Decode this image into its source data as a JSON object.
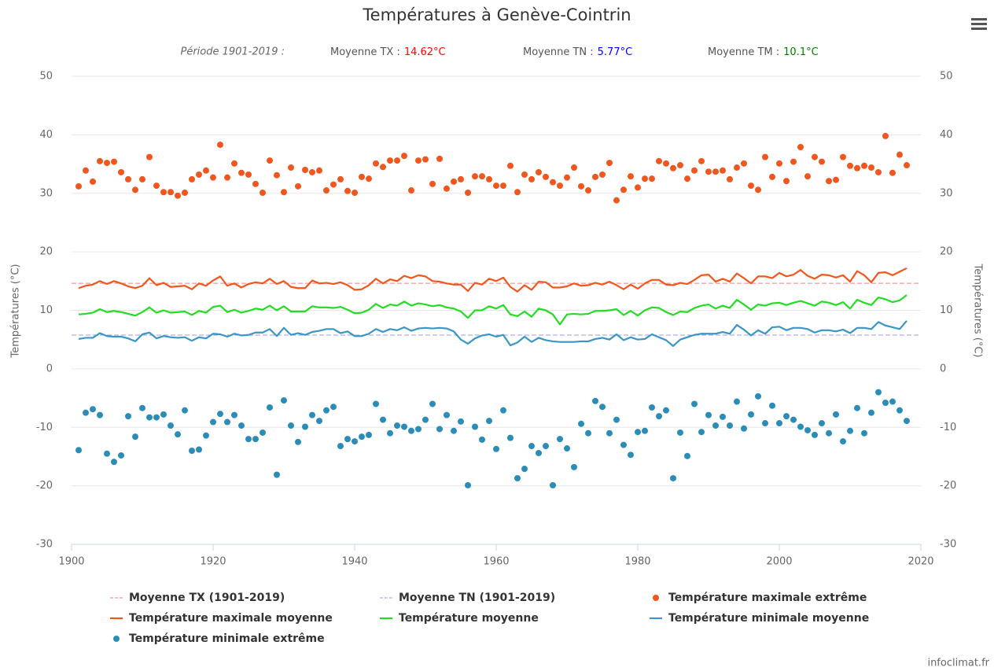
{
  "chart_data": {
    "type": "line",
    "title": "Températures à Genève-Cointrin",
    "subtitle": {
      "period": "Période 1901-2019 :",
      "items": [
        {
          "label": "Moyenne TX :",
          "value": "14.62°C",
          "color": "#ff0000"
        },
        {
          "label": "Moyenne TN :",
          "value": "5.77°C",
          "color": "#0000ff"
        },
        {
          "label": "Moyenne TM :",
          "value": "10.1°C",
          "color": "#008000"
        }
      ]
    },
    "y_label": "Températures (°C)",
    "y2_label": "Températures (°C)",
    "credits": "infoclimat.fr",
    "xlim": [
      1900,
      2020
    ],
    "xticks": [
      1900,
      1920,
      1940,
      1960,
      1980,
      2000,
      2020
    ],
    "ylim": [
      -30,
      50
    ],
    "yticks": [
      -30,
      -20,
      -10,
      0,
      10,
      20,
      30,
      40,
      50
    ],
    "y2lim": [
      -30,
      50
    ],
    "y2ticks": [
      -30,
      -20,
      -10,
      0,
      10,
      20,
      30,
      40,
      50
    ],
    "grid": true,
    "x": [
      1901,
      1902,
      1903,
      1904,
      1905,
      1906,
      1907,
      1908,
      1909,
      1910,
      1911,
      1912,
      1913,
      1914,
      1915,
      1916,
      1917,
      1918,
      1919,
      1920,
      1921,
      1922,
      1923,
      1924,
      1925,
      1926,
      1927,
      1928,
      1929,
      1930,
      1931,
      1932,
      1933,
      1934,
      1935,
      1936,
      1937,
      1938,
      1939,
      1940,
      1941,
      1942,
      1943,
      1944,
      1945,
      1946,
      1947,
      1948,
      1949,
      1950,
      1951,
      1952,
      1953,
      1954,
      1955,
      1956,
      1957,
      1958,
      1959,
      1960,
      1961,
      1962,
      1963,
      1964,
      1965,
      1966,
      1967,
      1968,
      1969,
      1970,
      1971,
      1972,
      1973,
      1974,
      1975,
      1976,
      1977,
      1978,
      1979,
      1980,
      1981,
      1982,
      1983,
      1984,
      1985,
      1986,
      1987,
      1988,
      1989,
      1990,
      1991,
      1992,
      1993,
      1994,
      1995,
      1996,
      1997,
      1998,
      1999,
      2000,
      2001,
      2002,
      2003,
      2004,
      2005,
      2006,
      2007,
      2008,
      2009,
      2010,
      2011,
      2012,
      2013,
      2014,
      2015,
      2016,
      2017,
      2018
    ],
    "series": [
      {
        "name": "Moyenne TX (1901-2019)",
        "kind": "reference",
        "color": "#f08080",
        "value": 14.62
      },
      {
        "name": "Moyenne TN (1901-2019)",
        "kind": "reference",
        "color": "#9999ee",
        "value": 5.77
      },
      {
        "name": "Température maximale extrême",
        "kind": "scatter",
        "color": "#f0561e",
        "values": [
          31.2,
          33.9,
          32.0,
          35.5,
          35.2,
          35.4,
          33.6,
          32.4,
          30.6,
          32.4,
          36.2,
          31.3,
          30.2,
          30.2,
          29.6,
          30.1,
          32.4,
          33.2,
          33.9,
          32.7,
          38.3,
          32.7,
          35.1,
          33.5,
          33.2,
          31.6,
          30.1,
          35.6,
          33.1,
          30.2,
          34.4,
          31.2,
          34.0,
          33.6,
          33.9,
          30.5,
          31.5,
          32.4,
          30.4,
          30.1,
          32.8,
          32.5,
          35.1,
          34.5,
          35.6,
          35.6,
          36.4,
          30.5,
          35.6,
          35.8,
          31.6,
          35.9,
          30.8,
          32.0,
          32.4,
          30.1,
          32.9,
          32.9,
          32.4,
          31.3,
          31.3,
          34.7,
          30.2,
          33.2,
          32.4,
          33.6,
          32.8,
          31.9,
          31.3,
          32.7,
          34.4,
          31.2,
          30.5,
          32.8,
          33.2,
          35.2,
          28.8,
          30.6,
          32.9,
          31.0,
          32.5,
          32.5,
          35.5,
          35.1,
          34.3,
          34.8,
          32.5,
          33.9,
          35.5,
          33.7,
          33.7,
          33.9,
          32.4,
          34.4,
          35.1,
          31.3,
          30.6,
          36.2,
          32.8,
          35.1,
          32.1,
          35.4,
          37.9,
          32.9,
          36.2,
          35.4,
          32.1,
          32.3,
          36.2,
          34.7,
          34.3,
          34.7,
          34.4,
          33.6,
          39.8,
          33.5,
          36.6,
          34.8
        ]
      },
      {
        "name": "Température maximale moyenne",
        "kind": "line",
        "color": "#f0561e",
        "values": [
          13.8,
          14.2,
          14.4,
          15.0,
          14.5,
          15.0,
          14.6,
          14.1,
          13.8,
          14.2,
          15.5,
          14.3,
          14.7,
          14.0,
          14.1,
          14.2,
          13.6,
          14.6,
          14.2,
          15.1,
          15.8,
          14.2,
          14.6,
          13.9,
          14.5,
          14.8,
          14.6,
          15.4,
          14.5,
          15.0,
          14.0,
          13.8,
          13.8,
          15.1,
          14.6,
          14.7,
          14.5,
          14.8,
          14.3,
          13.5,
          13.6,
          14.3,
          15.4,
          14.6,
          15.3,
          15.0,
          15.9,
          15.5,
          16.0,
          15.8,
          15.0,
          14.9,
          14.6,
          14.4,
          14.4,
          13.3,
          14.7,
          14.4,
          15.4,
          15.0,
          15.6,
          14.0,
          13.2,
          14.3,
          13.5,
          14.9,
          14.8,
          13.9,
          13.9,
          14.1,
          14.6,
          14.2,
          14.3,
          14.7,
          14.4,
          14.9,
          14.3,
          13.6,
          14.4,
          13.7,
          14.6,
          15.2,
          15.2,
          14.4,
          14.3,
          14.7,
          14.5,
          15.2,
          16.0,
          16.1,
          14.9,
          15.4,
          14.9,
          16.3,
          15.5,
          14.6,
          15.8,
          15.8,
          15.5,
          16.4,
          15.8,
          16.1,
          16.9,
          15.9,
          15.4,
          16.1,
          16.0,
          15.6,
          16.0,
          14.9,
          16.7,
          16.0,
          14.8,
          16.4,
          16.5,
          16.0,
          16.6,
          17.2
        ]
      },
      {
        "name": "Température moyenne",
        "kind": "line",
        "color": "#22dd22",
        "values": [
          9.3,
          9.4,
          9.6,
          10.2,
          9.7,
          9.9,
          9.7,
          9.4,
          9.1,
          9.7,
          10.5,
          9.6,
          10.0,
          9.6,
          9.7,
          9.8,
          9.2,
          9.9,
          9.6,
          10.6,
          10.8,
          9.7,
          10.1,
          9.6,
          9.9,
          10.3,
          10.1,
          10.8,
          10.0,
          10.7,
          9.8,
          9.8,
          9.8,
          10.7,
          10.5,
          10.5,
          10.4,
          10.6,
          10.1,
          9.5,
          9.6,
          10.1,
          11.1,
          10.4,
          11.0,
          10.8,
          11.5,
          10.8,
          11.2,
          11.0,
          10.7,
          10.9,
          10.5,
          10.3,
          9.8,
          8.7,
          10.0,
          10.0,
          10.7,
          10.3,
          10.9,
          9.3,
          9.0,
          9.8,
          8.9,
          10.3,
          10.0,
          9.3,
          7.6,
          9.3,
          9.4,
          9.3,
          9.4,
          9.9,
          9.9,
          10.0,
          10.2,
          9.2,
          9.9,
          9.1,
          10.0,
          10.5,
          10.4,
          9.7,
          9.2,
          9.8,
          9.7,
          10.4,
          10.8,
          11.0,
          10.3,
          10.8,
          10.4,
          11.8,
          11.0,
          10.1,
          11.0,
          10.8,
          11.2,
          11.3,
          10.9,
          11.3,
          11.6,
          11.2,
          10.8,
          11.5,
          11.3,
          10.9,
          11.4,
          10.3,
          11.8,
          11.3,
          10.9,
          12.2,
          11.9,
          11.4,
          11.7,
          12.6
        ]
      },
      {
        "name": "Température minimale moyenne",
        "kind": "line",
        "color": "#3a96c4",
        "values": [
          5.1,
          5.3,
          5.3,
          6.1,
          5.6,
          5.5,
          5.5,
          5.2,
          4.7,
          5.9,
          6.2,
          5.2,
          5.6,
          5.4,
          5.3,
          5.4,
          4.8,
          5.4,
          5.2,
          6.0,
          5.9,
          5.5,
          6.0,
          5.7,
          5.8,
          6.2,
          6.2,
          6.8,
          5.6,
          7.0,
          5.8,
          6.1,
          5.8,
          6.3,
          6.5,
          6.8,
          6.8,
          6.1,
          6.4,
          5.6,
          5.6,
          6.0,
          6.8,
          6.3,
          6.8,
          6.6,
          7.1,
          6.5,
          6.9,
          7.0,
          6.9,
          7.0,
          6.9,
          6.4,
          5.0,
          4.3,
          5.2,
          5.7,
          5.9,
          5.5,
          5.8,
          4.0,
          4.5,
          5.5,
          4.6,
          5.3,
          4.9,
          4.7,
          4.6,
          4.6,
          4.6,
          4.7,
          4.7,
          5.1,
          5.3,
          5.0,
          5.9,
          4.9,
          5.4,
          5.0,
          5.1,
          5.9,
          5.4,
          4.9,
          3.9,
          5.0,
          5.4,
          5.8,
          6.0,
          6.0,
          6.0,
          6.3,
          6.0,
          7.5,
          6.7,
          5.7,
          6.6,
          6.0,
          7.1,
          7.2,
          6.6,
          7.0,
          7.0,
          6.8,
          6.2,
          6.6,
          6.6,
          6.4,
          6.7,
          6.1,
          7.0,
          7.0,
          6.8,
          8.0,
          7.4,
          7.1,
          6.8,
          8.2
        ]
      },
      {
        "name": "Température minimale extrême",
        "kind": "scatter",
        "color": "#2b8cb8",
        "values": [
          -13.9,
          -7.5,
          -6.9,
          -7.9,
          -14.5,
          -15.9,
          -14.8,
          -8.1,
          -11.6,
          -6.7,
          -8.3,
          -8.3,
          -7.8,
          -9.7,
          -11.2,
          -7.1,
          -14.0,
          -13.8,
          -11.4,
          -9.1,
          -7.7,
          -9.1,
          -7.9,
          -9.7,
          -12.0,
          -12.0,
          -10.9,
          -6.6,
          -18.1,
          -5.4,
          -9.7,
          -12.5,
          -9.9,
          -7.9,
          -8.9,
          -7.1,
          -6.5,
          -13.2,
          -12.0,
          -12.4,
          -11.6,
          -11.3,
          -6.0,
          -8.7,
          -11.0,
          -9.7,
          -9.9,
          -10.6,
          -10.3,
          -8.7,
          -6.0,
          -10.3,
          -7.9,
          -10.6,
          -9.0,
          -19.9,
          -9.9,
          -12.1,
          -8.9,
          -13.7,
          -7.1,
          -11.8,
          -18.7,
          -17.1,
          -13.2,
          -14.4,
          -13.2,
          -19.9,
          -12.0,
          -13.6,
          -16.8,
          -9.4,
          -11.0,
          -5.5,
          -6.5,
          -11.0,
          -8.7,
          -13.0,
          -14.7,
          -10.8,
          -10.6,
          -6.6,
          -8.1,
          -7.1,
          -18.7,
          -10.9,
          -14.9,
          -6.0,
          -10.8,
          -7.9,
          -9.7,
          -8.2,
          -9.7,
          -5.6,
          -10.2,
          -7.8,
          -4.7,
          -9.3,
          -6.3,
          -9.3,
          -8.1,
          -8.7,
          -9.9,
          -10.5,
          -11.3,
          -9.3,
          -11.0,
          -7.8,
          -12.4,
          -10.6,
          -6.7,
          -11.0,
          -7.5,
          -4.0,
          -5.8,
          -5.6,
          -7.1,
          -8.9
        ]
      }
    ]
  }
}
